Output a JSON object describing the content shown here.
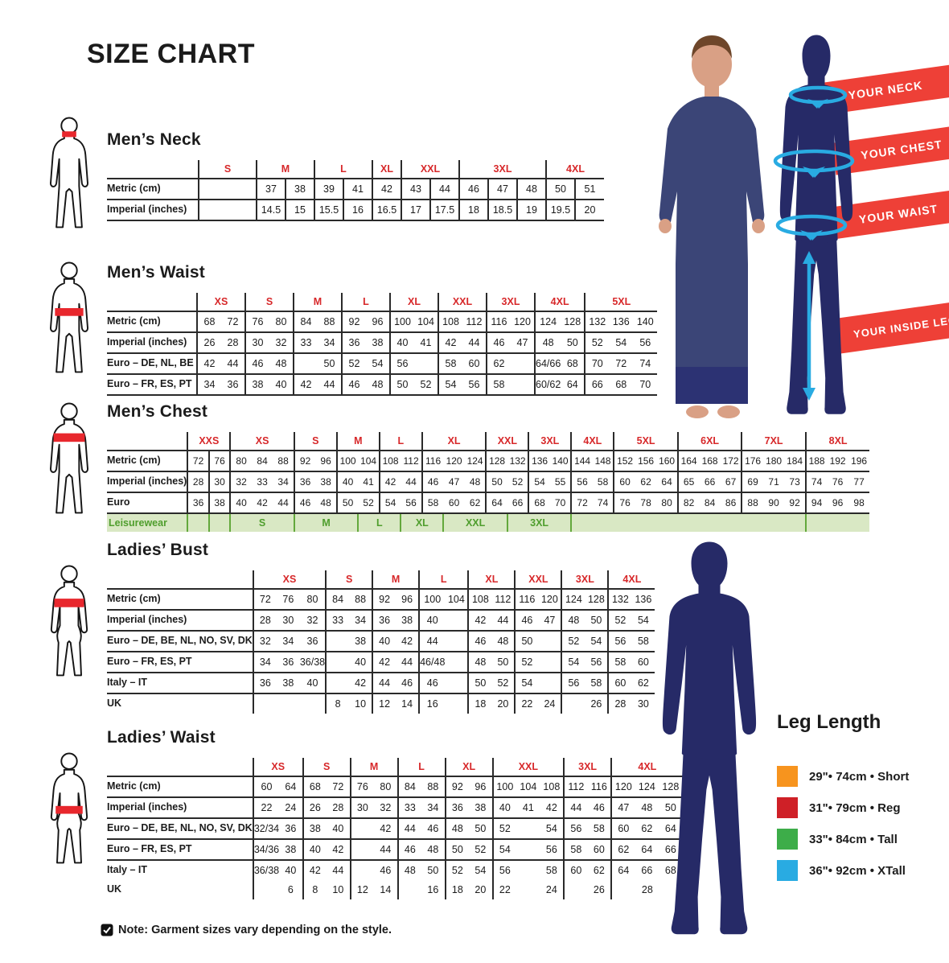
{
  "page": {
    "title": "SIZE CHART",
    "note": "Note: Garment sizes vary depending on the style."
  },
  "banners": [
    {
      "label": "YOUR NECK"
    },
    {
      "label": "YOUR CHEST"
    },
    {
      "label": "YOUR WAIST"
    },
    {
      "label": "YOUR INSIDE LEG"
    }
  ],
  "leg_length": {
    "title": "Leg Length",
    "items": [
      {
        "color": "#f7941e",
        "label": "29\"• 74cm • Short"
      },
      {
        "color": "#cf2027",
        "label": "31\"• 79cm • Reg"
      },
      {
        "color": "#3dad49",
        "label": "33\"• 84cm • Tall"
      },
      {
        "color": "#29abe2",
        "label": "36\"• 92cm • XTall"
      }
    ]
  },
  "colors": {
    "header_red": "#d7282a",
    "banner_red": "#ee4037",
    "silhouette_navy": "#262a67",
    "leisure_green_bg": "#d9e8c4",
    "leisure_green": "#4f9e2d",
    "cyan_arrow": "#29abe2",
    "band_blue": "#2b56a5",
    "highlight_red": "#e8272d"
  },
  "tables": [
    {
      "id": "mens-neck",
      "title": "Men’s Neck",
      "dividers": "all",
      "groups": [
        {
          "label": "S",
          "cols": 2
        },
        {
          "label": "M",
          "cols": 2
        },
        {
          "label": "L",
          "cols": 2
        },
        {
          "label": "XL",
          "cols": 1
        },
        {
          "label": "XXL",
          "cols": 2
        },
        {
          "label": "3XL",
          "cols": 3
        },
        {
          "label": "4XL",
          "cols": 2
        }
      ],
      "rows": [
        {
          "label": "Metric (cm)",
          "cells": [
            [
              "",
              2
            ],
            "37",
            "38",
            "39",
            "41",
            "42",
            "43",
            "44",
            "46",
            "47",
            "48",
            "50",
            "51"
          ]
        },
        {
          "label": "Imperial (inches)",
          "cells": [
            [
              "",
              2
            ],
            "14.5",
            "15",
            "15.5",
            "16",
            "16.5",
            "17",
            "17.5",
            "18",
            "18.5",
            "19",
            "19.5",
            "20"
          ]
        }
      ]
    },
    {
      "id": "mens-waist",
      "title": "Men’s Waist",
      "dividers": "group",
      "groups": [
        {
          "label": "XS",
          "cols": 2
        },
        {
          "label": "S",
          "cols": 2
        },
        {
          "label": "M",
          "cols": 2
        },
        {
          "label": "L",
          "cols": 2
        },
        {
          "label": "XL",
          "cols": 2
        },
        {
          "label": "XXL",
          "cols": 2
        },
        {
          "label": "3XL",
          "cols": 2
        },
        {
          "label": "4XL",
          "cols": 2
        },
        {
          "label": "5XL",
          "cols": 3
        }
      ],
      "rows": [
        {
          "label": "Metric (cm)",
          "cells": [
            "68",
            "72",
            "76",
            "80",
            "84",
            "88",
            "92",
            "96",
            "100",
            "104",
            "108",
            "112",
            "116",
            "120",
            "124",
            "128",
            "132",
            "136",
            "140"
          ]
        },
        {
          "label": "Imperial (inches)",
          "cells": [
            "26",
            "28",
            "30",
            "32",
            "33",
            "34",
            "36",
            "38",
            "40",
            "41",
            "42",
            "44",
            "46",
            "47",
            "48",
            "50",
            "52",
            "54",
            "56"
          ]
        },
        {
          "label": "Euro – DE, NL, BE",
          "cells": [
            "42",
            "44",
            "46",
            "48",
            "",
            "50",
            "52",
            "54",
            "56",
            "",
            "58",
            "60",
            "62",
            "",
            "64/66",
            "68",
            "70",
            "72",
            "74"
          ]
        },
        {
          "label": "Euro – FR, ES, PT",
          "cells": [
            "34",
            "36",
            "38",
            "40",
            "42",
            "44",
            "46",
            "48",
            "50",
            "52",
            "54",
            "56",
            "58",
            "",
            "60/62",
            "64",
            "66",
            "68",
            "70"
          ]
        }
      ]
    },
    {
      "id": "mens-chest",
      "title": "Men’s Chest",
      "dividers": "group",
      "extra_dividers": [
        1
      ],
      "groups": [
        {
          "label": "XXS",
          "cols": 2
        },
        {
          "label": "XS",
          "cols": 3
        },
        {
          "label": "S",
          "cols": 2
        },
        {
          "label": "M",
          "cols": 2
        },
        {
          "label": "L",
          "cols": 2
        },
        {
          "label": "XL",
          "cols": 3
        },
        {
          "label": "XXL",
          "cols": 2
        },
        {
          "label": "3XL",
          "cols": 2
        },
        {
          "label": "4XL",
          "cols": 2
        },
        {
          "label": "5XL",
          "cols": 3
        },
        {
          "label": "6XL",
          "cols": 3
        },
        {
          "label": "7XL",
          "cols": 3
        },
        {
          "label": "8XL",
          "cols": 3
        }
      ],
      "rows": [
        {
          "label": "Metric (cm)",
          "cells": [
            "72",
            "76",
            "80",
            "84",
            "88",
            "92",
            "96",
            "100",
            "104",
            "108",
            "112",
            "116",
            "120",
            "124",
            "128",
            "132",
            "136",
            "140",
            "144",
            "148",
            "152",
            "156",
            "160",
            "164",
            "168",
            "172",
            "176",
            "180",
            "184",
            "188",
            "192",
            "196"
          ]
        },
        {
          "label": "Imperial (inches)",
          "cells": [
            "28",
            "30",
            "32",
            "33",
            "34",
            "36",
            "38",
            "40",
            "41",
            "42",
            "44",
            "46",
            "47",
            "48",
            "50",
            "52",
            "54",
            "55",
            "56",
            "58",
            "60",
            "62",
            "64",
            "65",
            "66",
            "67",
            "69",
            "71",
            "73",
            "74",
            "76",
            "77"
          ]
        },
        {
          "label": "Euro",
          "cells": [
            "36",
            "38",
            "40",
            "42",
            "44",
            "46",
            "48",
            "50",
            "52",
            "54",
            "56",
            "58",
            "60",
            "62",
            "64",
            "66",
            "68",
            "70",
            "72",
            "74",
            "76",
            "78",
            "80",
            "82",
            "84",
            "86",
            "88",
            "90",
            "92",
            "94",
            "96",
            "98"
          ]
        }
      ],
      "leisurewear": {
        "label": "Leisurewear",
        "cells": [
          [
            "",
            1
          ],
          [
            "",
            1
          ],
          [
            "S",
            3
          ],
          [
            "M",
            3
          ],
          [
            "L",
            2
          ],
          [
            "XL",
            2
          ],
          [
            "XXL",
            3
          ],
          [
            "3XL",
            3
          ],
          [
            "",
            11
          ],
          [
            "",
            3
          ]
        ]
      }
    },
    {
      "id": "ladies-bust",
      "title": "Ladies’ Bust",
      "dividers": "group",
      "groups": [
        {
          "label": "XS",
          "cols": 3
        },
        {
          "label": "S",
          "cols": 2
        },
        {
          "label": "M",
          "cols": 2
        },
        {
          "label": "L",
          "cols": 2
        },
        {
          "label": "XL",
          "cols": 2
        },
        {
          "label": "XXL",
          "cols": 2
        },
        {
          "label": "3XL",
          "cols": 2
        },
        {
          "label": "4XL",
          "cols": 2
        }
      ],
      "rows": [
        {
          "label": "Metric (cm)",
          "cells": [
            "72",
            "76",
            "80",
            "84",
            "88",
            "92",
            "96",
            "100",
            "104",
            "108",
            "112",
            "116",
            "120",
            "124",
            "128",
            "132",
            "136"
          ]
        },
        {
          "label": "Imperial (inches)",
          "cells": [
            "28",
            "30",
            "32",
            "33",
            "34",
            "36",
            "38",
            "40",
            "",
            "42",
            "44",
            "46",
            "47",
            "48",
            "50",
            "52",
            "54"
          ]
        },
        {
          "label": "Euro –  DE, BE,\nNL, NO, SV, DK",
          "cells": [
            "32",
            "34",
            "36",
            "",
            "38",
            "40",
            "42",
            "44",
            "",
            "46",
            "48",
            "50",
            "",
            "52",
            "54",
            "56",
            "58"
          ]
        },
        {
          "label": "Euro – FR, ES, PT",
          "cells": [
            "34",
            "36",
            "36/38",
            "",
            "40",
            "42",
            "44",
            "46/48",
            "",
            "48",
            "50",
            "52",
            "",
            "54",
            "56",
            "58",
            "60"
          ]
        },
        {
          "label": "Italy – IT",
          "cells": [
            "36",
            "38",
            "40",
            "",
            "42",
            "44",
            "46",
            "46",
            "",
            "50",
            "52",
            "54",
            "",
            "56",
            "58",
            "60",
            "62"
          ]
        },
        {
          "label": "UK",
          "nb": true,
          "cells": [
            [
              "",
              3
            ],
            "8",
            "10",
            "12",
            "14",
            "16",
            "",
            "18",
            "20",
            "22",
            "24",
            "",
            "26",
            "28",
            "30"
          ]
        }
      ]
    },
    {
      "id": "ladies-waist",
      "title": "Ladies’ Waist",
      "dividers": "group",
      "groups": [
        {
          "label": "XS",
          "cols": 2
        },
        {
          "label": "S",
          "cols": 2
        },
        {
          "label": "M",
          "cols": 2
        },
        {
          "label": "L",
          "cols": 2
        },
        {
          "label": "XL",
          "cols": 2
        },
        {
          "label": "XXL",
          "cols": 3
        },
        {
          "label": "3XL",
          "cols": 2
        },
        {
          "label": "4XL",
          "cols": 3
        }
      ],
      "rows": [
        {
          "label": "Metric (cm)",
          "cells": [
            "60",
            "64",
            "68",
            "72",
            "76",
            "80",
            "84",
            "88",
            "92",
            "96",
            "100",
            "104",
            "108",
            "112",
            "116",
            "120",
            "124",
            "128"
          ]
        },
        {
          "label": "Imperial (inches)",
          "cells": [
            "22",
            "24",
            "26",
            "28",
            "30",
            "32",
            "33",
            "34",
            "36",
            "38",
            "40",
            "41",
            "42",
            "44",
            "46",
            "47",
            "48",
            "50"
          ]
        },
        {
          "label": "Euro – DE, BE, NL,\nNO, SV, DK",
          "cells": [
            "32/34",
            "36",
            "38",
            "40",
            "",
            "42",
            "44",
            "46",
            "48",
            "50",
            "52",
            "",
            "54",
            "56",
            "58",
            "60",
            "62",
            "64"
          ]
        },
        {
          "label": "Euro – FR, ES, PT",
          "cells": [
            "34/36",
            "38",
            "40",
            "42",
            "",
            "44",
            "46",
            "48",
            "50",
            "52",
            "54",
            "",
            "56",
            "58",
            "60",
            "62",
            "64",
            "66"
          ]
        },
        {
          "label": "Italy – IT",
          "nb": true,
          "cells": [
            "36/38",
            "40",
            "42",
            "44",
            "",
            "46",
            "48",
            "50",
            "52",
            "54",
            "56",
            "",
            "58",
            "60",
            "62",
            "64",
            "66",
            "68"
          ]
        },
        {
          "label": "UK",
          "nb": true,
          "cells": [
            "",
            "6",
            "8",
            "10",
            "12",
            "14",
            "",
            "16",
            "18",
            "20",
            "22",
            "",
            "24",
            "",
            "26",
            [
              "28",
              3
            ]
          ]
        }
      ]
    }
  ]
}
